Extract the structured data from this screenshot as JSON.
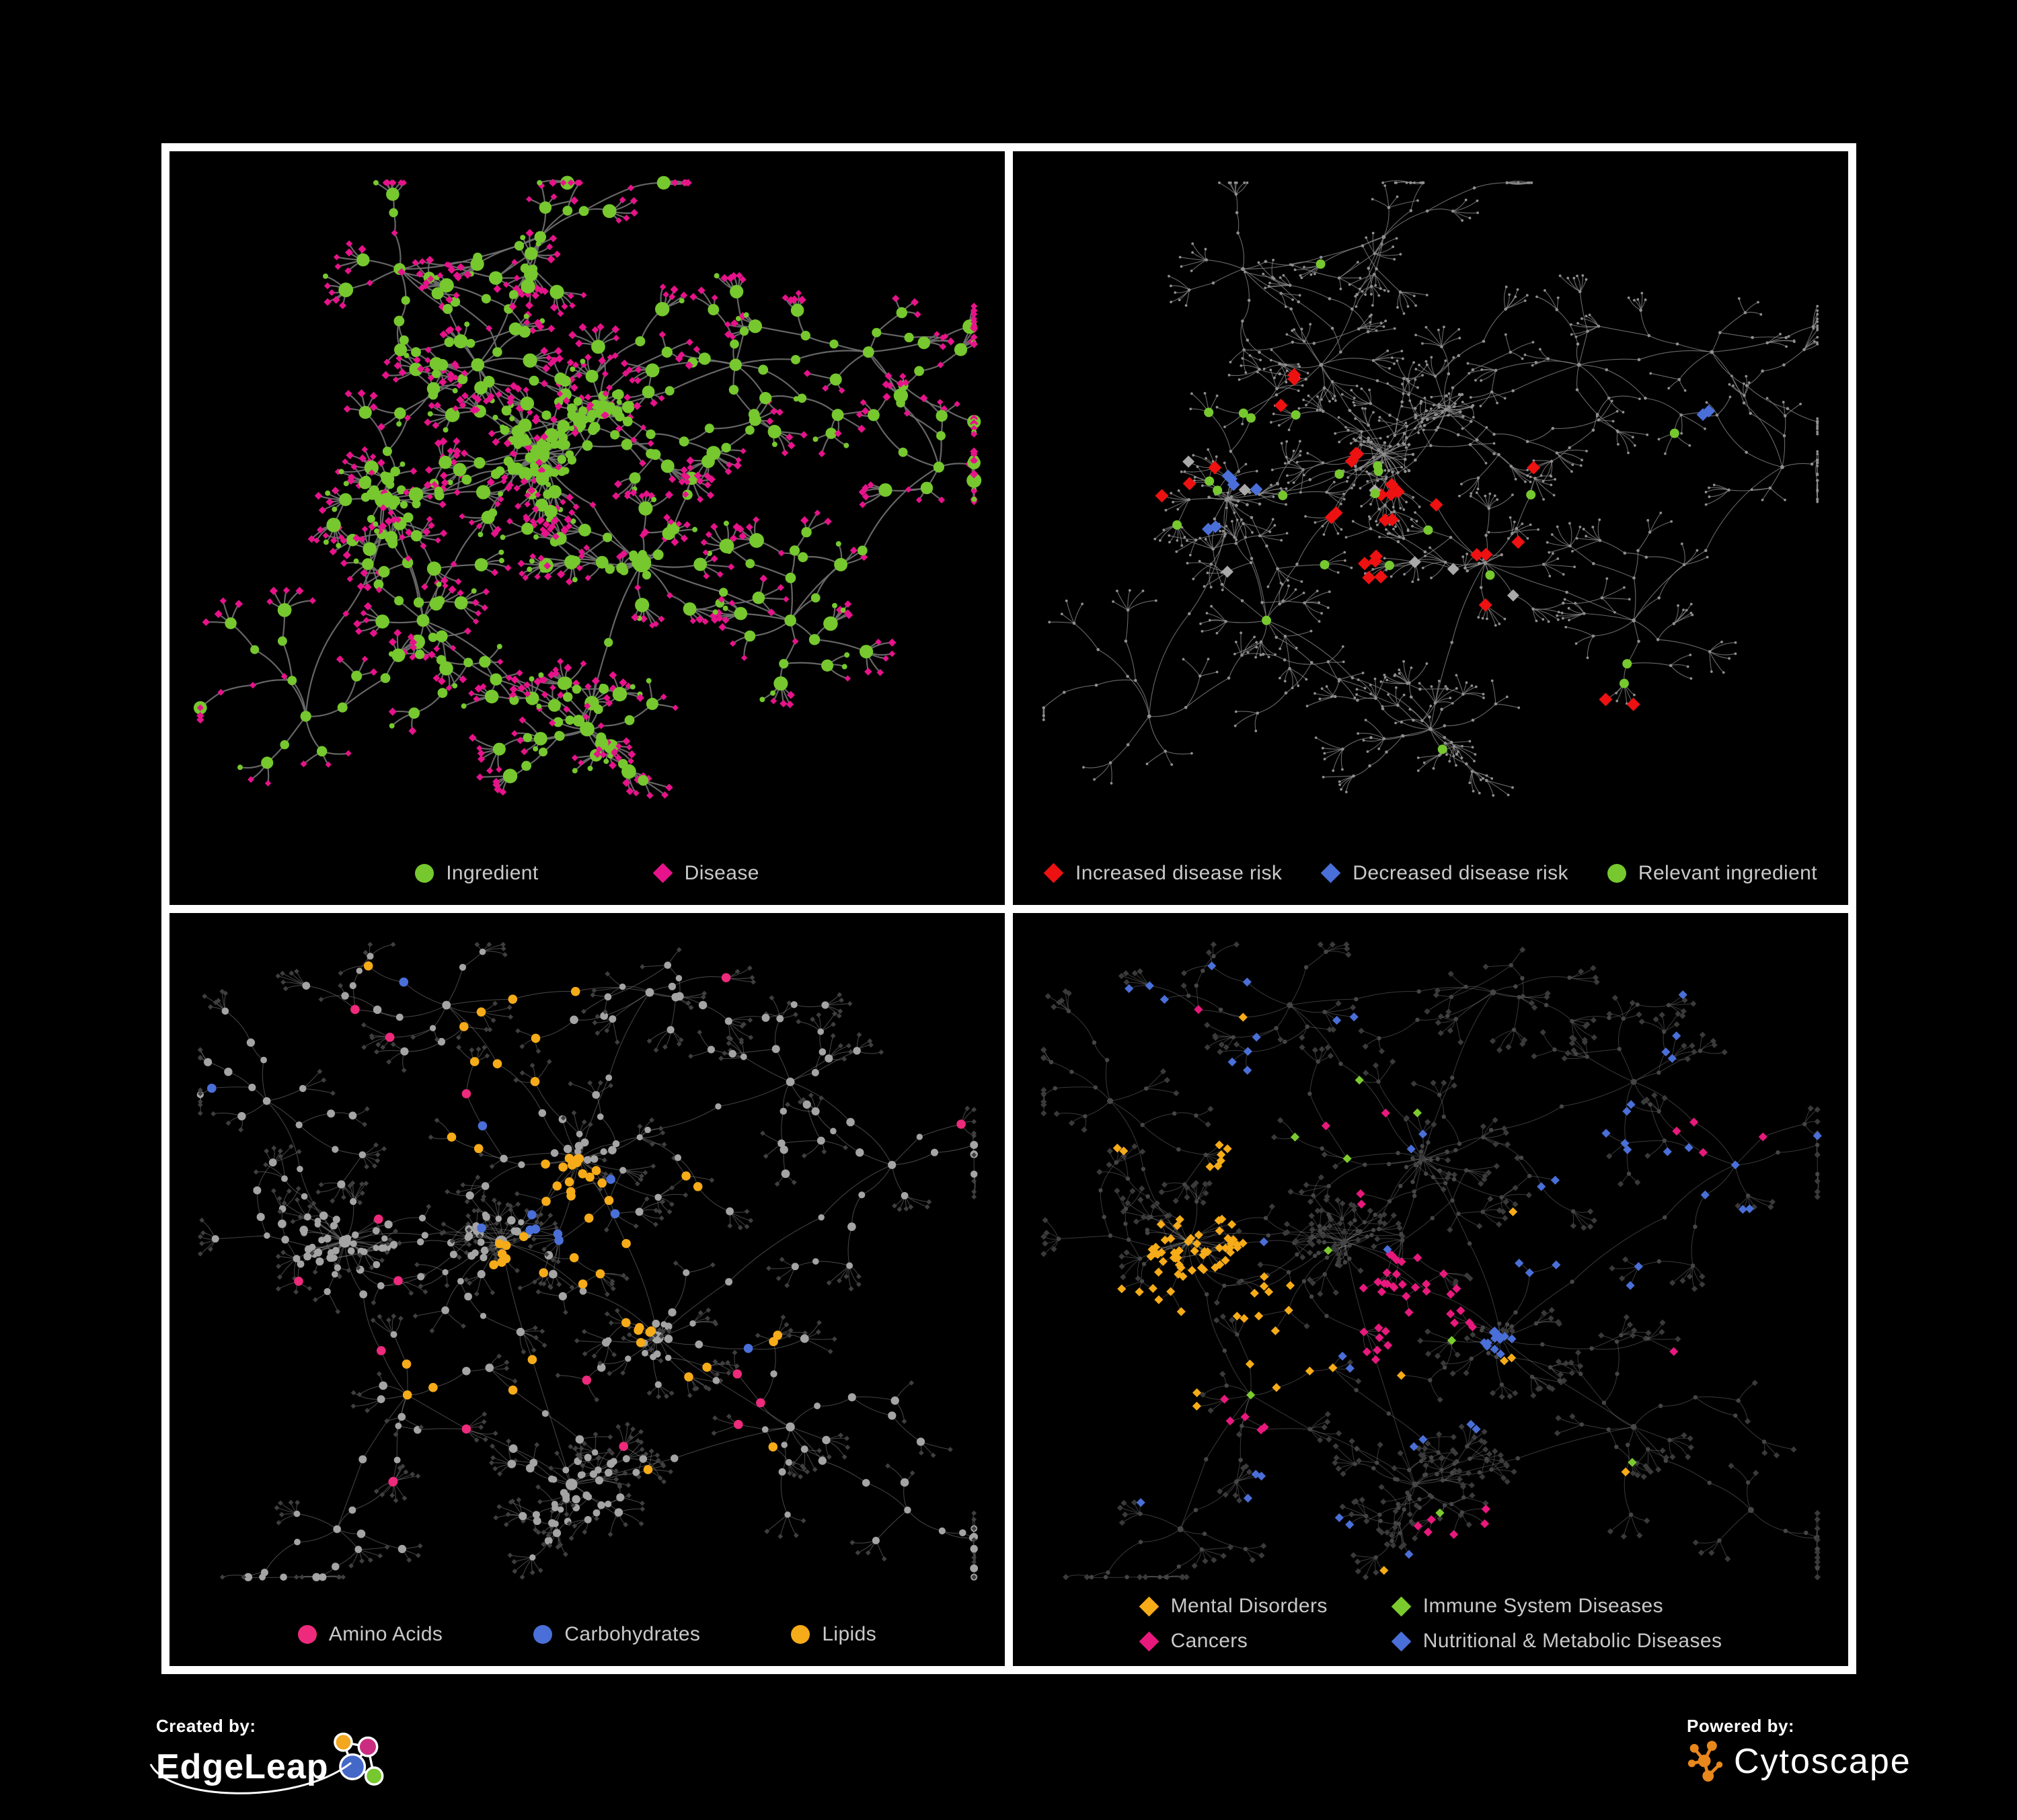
{
  "figure": {
    "background": "#000000",
    "panel_border_color": "#ffffff",
    "legend_text_color": "#c9c9c9"
  },
  "branding": {
    "created_by": "Created by:",
    "brand_left": "EdgeLeap",
    "powered_by": "Powered by:",
    "brand_right": "Cytoscape",
    "cytoscape_orange": "#e8871c",
    "edgeleap_node_colors": {
      "orange": "#f2a71f",
      "magenta": "#c92c80",
      "blue": "#4468c8",
      "green": "#76c82e"
    }
  },
  "chart_data": [
    {
      "panel": "top-left",
      "type": "network",
      "description": "Ingredient-disease association network; circles are ingredients, diamonds are diseases",
      "legend": [
        {
          "label": "Ingredient",
          "shape": "circle",
          "color": "#76c82e"
        },
        {
          "label": "Disease",
          "shape": "diamond",
          "color": "#e6138a"
        }
      ],
      "style": {
        "edge_color": "#6f6f6f",
        "edge_opacity": 0.92,
        "edge_width": 2.2
      },
      "approx_node_count": 950,
      "legend_position": "bottom-center"
    },
    {
      "panel": "top-right",
      "type": "network",
      "description": "Same network; highlighted disease-risk associations of one ingredient set",
      "legend": [
        {
          "label": "Increased disease risk",
          "shape": "diamond",
          "color": "#ee1111"
        },
        {
          "label": "Decreased disease risk",
          "shape": "diamond",
          "color": "#4a6fd8"
        },
        {
          "label": "Relevant ingredient",
          "shape": "circle",
          "color": "#76c82e"
        }
      ],
      "style": {
        "edge_color": "#8b8b8b",
        "edge_opacity": 0.75,
        "edge_width": 1.1,
        "base_node_color": "#8f8f8f",
        "neutral_diamond_color": "#a9a9a9"
      },
      "highlight_counts": {
        "increased": 30,
        "decreased": 8,
        "neutral": 7,
        "relevant_ingredient": 22
      },
      "legend_position": "bottom-center"
    },
    {
      "panel": "bottom-left",
      "type": "network",
      "description": "Same network; compound circles colored by chemical class, diseases as dark diamonds",
      "legend": [
        {
          "label": "Amino Acids",
          "shape": "circle",
          "color": "#ed2a7b"
        },
        {
          "label": "Carbohydrates",
          "shape": "circle",
          "color": "#4a6fd8"
        },
        {
          "label": "Lipids",
          "shape": "circle",
          "color": "#f6ab18"
        }
      ],
      "style": {
        "edge_color": "#9c9c9c",
        "edge_opacity": 0.42,
        "edge_width": 1.1,
        "compound_color": "#a4a4a4",
        "disease_color": "#3f3f3f"
      },
      "highlight_counts": {
        "amino_acids": 17,
        "carbohydrates": 12,
        "lipids": 60
      },
      "legend_position": "bottom-center"
    },
    {
      "panel": "bottom-right",
      "type": "network",
      "description": "Same network; disease diamonds colored by disease class",
      "legend": [
        {
          "label": "Mental Disorders",
          "shape": "diamond",
          "color": "#f6ab18"
        },
        {
          "label": "Immune System Diseases",
          "shape": "diamond",
          "color": "#7ccb2e"
        },
        {
          "label": "Cancers",
          "shape": "diamond",
          "color": "#e8197d"
        },
        {
          "label": "Nutritional & Metabolic Diseases",
          "shape": "diamond",
          "color": "#4a6fd8"
        }
      ],
      "style": {
        "edge_color": "#9f9f9f",
        "edge_opacity": 0.36,
        "edge_width": 1.0,
        "base_diamond_color": "#3a3a3a",
        "base_dot_color": "#454545"
      },
      "highlight_counts": {
        "mental_disorders": 87,
        "cancers": 57,
        "nutritional_metabolic": 65,
        "immune_system": 9
      },
      "legend_position": "bottom-center-two-columns"
    }
  ]
}
